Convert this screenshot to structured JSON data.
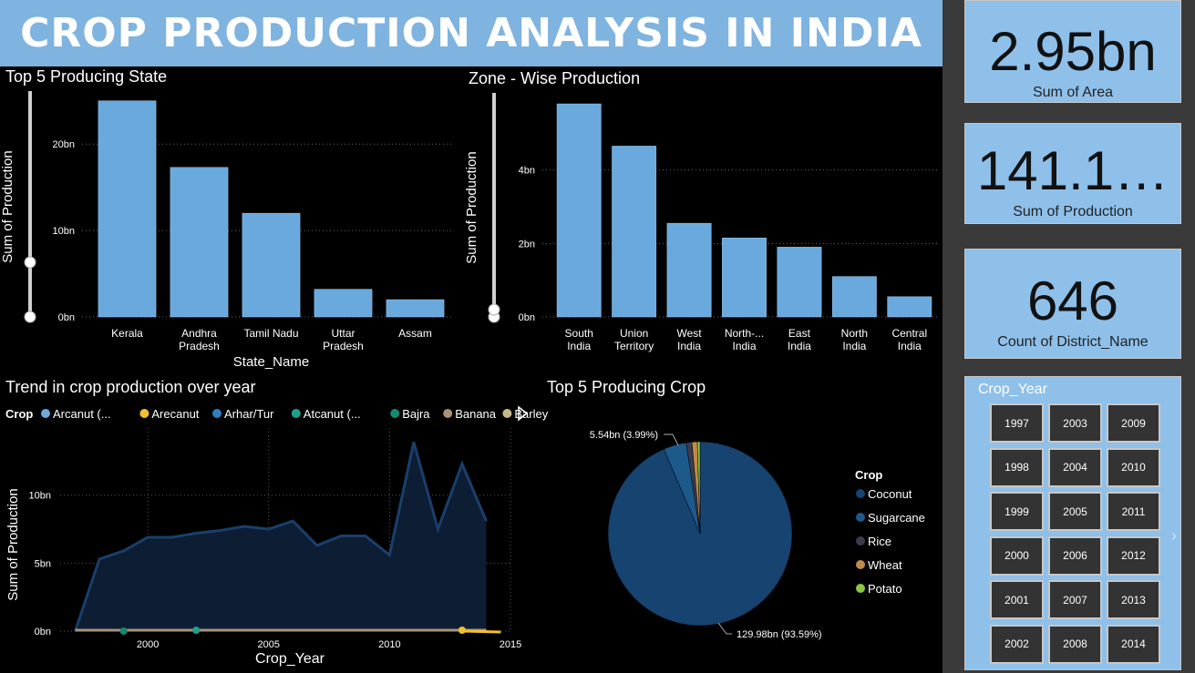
{
  "header": {
    "title": "CROP PRODUCTION ANALYSIS IN INDIA"
  },
  "cards": [
    {
      "value": "2.95bn",
      "label": "Sum of Area"
    },
    {
      "value": "141.1…",
      "label": "Sum of Production"
    },
    {
      "value": "646",
      "label": "Count of District_Name"
    }
  ],
  "slicer": {
    "title": "Crop_Year",
    "years": [
      "1997",
      "2003",
      "2009",
      "1998",
      "2004",
      "2010",
      "1999",
      "2005",
      "2011",
      "2000",
      "2006",
      "2012",
      "2001",
      "2007",
      "2013",
      "2002",
      "2008",
      "2014"
    ]
  },
  "colors": {
    "bar": "#6aa9dd",
    "area": "#1a3f6b",
    "coconut": "#16436f",
    "sugarcane": "#1d5a8c",
    "rice": "#3b3b4f",
    "wheat": "#c08a4a",
    "potato": "#8cc63f"
  },
  "chart_data": [
    {
      "type": "bar",
      "title": "Top 5 Producing State",
      "xlabel": "State_Name",
      "ylabel": "Sum of Production",
      "categories": [
        [
          "Kerala"
        ],
        [
          "Andhra",
          "Pradesh"
        ],
        [
          "Tamil Nadu"
        ],
        [
          "Uttar",
          "Pradesh"
        ],
        [
          "Assam"
        ]
      ],
      "values": [
        25.0,
        17.3,
        12.0,
        3.2,
        2.0
      ],
      "y_ticks": [
        0,
        10,
        20
      ],
      "y_tick_labels": [
        "0bn",
        "10bn",
        "20bn"
      ],
      "ylim": [
        0,
        25.5
      ]
    },
    {
      "type": "bar",
      "title": "Zone - Wise Production",
      "xlabel": "",
      "ylabel": "Sum of Production",
      "categories": [
        [
          "South",
          "India"
        ],
        [
          "Union",
          "Territory"
        ],
        [
          "West",
          "India"
        ],
        [
          "North-...",
          "India"
        ],
        [
          "East",
          "India"
        ],
        [
          "North",
          "India"
        ],
        [
          "Central",
          "India"
        ]
      ],
      "values": [
        5.8,
        4.65,
        2.55,
        2.15,
        1.9,
        1.1,
        0.55
      ],
      "y_ticks": [
        0,
        2,
        4
      ],
      "y_tick_labels": [
        "0bn",
        "2bn",
        "4bn"
      ],
      "ylim": [
        0,
        5.95
      ]
    },
    {
      "type": "area",
      "title": "Trend in crop production over year",
      "xlabel": "Crop_Year",
      "ylabel": "Sum of Production",
      "legend_title": "Crop",
      "legend": [
        {
          "name": "Arcanut (...",
          "color": "#6aa9dd"
        },
        {
          "name": "Arecanut",
          "color": "#f2c12e"
        },
        {
          "name": "Arhar/Tur",
          "color": "#2f7fc1"
        },
        {
          "name": "Atcanut (...",
          "color": "#1fa08a"
        },
        {
          "name": "Bajra",
          "color": "#148a6e"
        },
        {
          "name": "Banana",
          "color": "#a8937a"
        },
        {
          "name": "Barley",
          "color": "#c8b98a"
        }
      ],
      "x": [
        1997,
        1998,
        1999,
        2000,
        2001,
        2002,
        2003,
        2004,
        2005,
        2006,
        2007,
        2008,
        2009,
        2010,
        2011,
        2012,
        2013,
        2014
      ],
      "values": [
        0,
        5.3,
        5.9,
        6.9,
        6.9,
        7.2,
        7.4,
        7.7,
        7.5,
        8.1,
        6.3,
        7.0,
        7.0,
        5.6,
        13.9,
        7.5,
        12.3,
        8.1
      ],
      "x_ticks": [
        2000,
        2005,
        2010,
        2015
      ],
      "x_tick_labels": [
        "2000",
        "2005",
        "2010",
        "2015"
      ],
      "y_ticks": [
        0,
        5,
        10
      ],
      "y_tick_labels": [
        "0bn",
        "5bn",
        "10bn"
      ],
      "xlim": [
        1996,
        2015
      ],
      "ylim": [
        0,
        14
      ]
    },
    {
      "type": "pie",
      "title": "Top 5 Producing Crop",
      "legend_title": "Crop",
      "slices": [
        {
          "name": "Coconut",
          "value": 129.98,
          "percent": 93.59,
          "label": "129.98bn (93.59%)",
          "color": "#16436f"
        },
        {
          "name": "Sugarcane",
          "value": 5.54,
          "percent": 3.99,
          "label": "5.54bn (3.99%)",
          "color": "#1d5a8c"
        },
        {
          "name": "Rice",
          "value": 1.4,
          "percent": 1.0,
          "label": "",
          "color": "#3b3b4f"
        },
        {
          "name": "Wheat",
          "value": 1.3,
          "percent": 0.94,
          "label": "",
          "color": "#c08a4a"
        },
        {
          "name": "Potato",
          "value": 0.66,
          "percent": 0.48,
          "label": "",
          "color": "#8cc63f"
        }
      ]
    }
  ]
}
